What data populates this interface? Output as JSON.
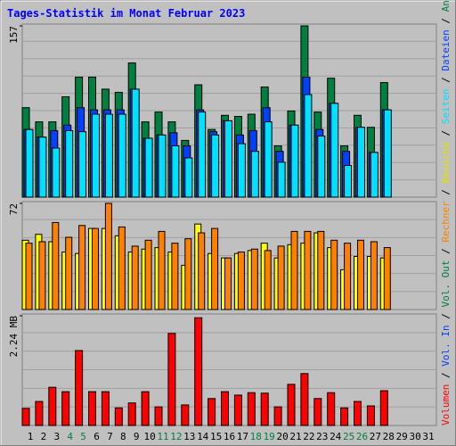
{
  "title": "Tages-Statistik im Monat Februar 2023",
  "x_axis": {
    "categories": [
      "1",
      "2",
      "3",
      "4",
      "5",
      "6",
      "7",
      "8",
      "9",
      "10",
      "11",
      "12",
      "13",
      "14",
      "15",
      "16",
      "17",
      "18",
      "19",
      "20",
      "21",
      "22",
      "23",
      "24",
      "25",
      "26",
      "27",
      "28",
      "29",
      "30",
      "31"
    ],
    "weekend": [
      3,
      4,
      10,
      11,
      17,
      18,
      24,
      25
    ],
    "color": "#000000",
    "weekend_color": "#008040"
  },
  "legend_separator": " / ",
  "chart_data": [
    {
      "type": "bar",
      "ylim": [
        0,
        157
      ],
      "yticks": [
        157
      ],
      "series": [
        {
          "name": "Anfragen",
          "color": "#008040",
          "values": [
            82,
            69,
            69,
            92,
            110,
            110,
            99,
            96,
            123,
            69,
            78,
            69,
            52,
            103,
            62,
            75,
            74,
            76,
            101,
            47,
            79,
            157,
            78,
            109,
            47,
            75,
            64,
            105,
            null,
            null,
            null
          ]
        },
        {
          "name": "Dateien",
          "color": "#0040ff",
          "values": [
            62,
            55,
            61,
            66,
            82,
            80,
            80,
            80,
            99,
            54,
            57,
            59,
            47,
            80,
            60,
            70,
            57,
            61,
            82,
            42,
            66,
            110,
            62,
            86,
            42,
            64,
            41,
            80,
            null,
            null,
            null
          ]
        },
        {
          "name": "Seiten",
          "color": "#00e0ff",
          "values": [
            62,
            55,
            45,
            61,
            60,
            76,
            76,
            76,
            99,
            54,
            57,
            47,
            36,
            78,
            57,
            70,
            49,
            42,
            69,
            32,
            66,
            94,
            56,
            86,
            29,
            64,
            41,
            80,
            null,
            null,
            null
          ]
        }
      ]
    },
    {
      "type": "bar",
      "ylim": [
        0,
        72
      ],
      "yticks": [
        72
      ],
      "series": [
        {
          "name": "Besuche",
          "color": "#ffff00",
          "values": [
            47,
            51,
            46,
            39,
            38,
            55,
            55,
            50,
            39,
            41,
            42,
            39,
            30,
            58,
            38,
            35,
            38,
            40,
            45,
            35,
            44,
            45,
            52,
            42,
            27,
            36,
            36,
            35,
            null,
            null,
            null
          ]
        },
        {
          "name": "Rechner",
          "color": "#ff8000",
          "values": [
            45,
            46,
            59,
            49,
            57,
            55,
            72,
            56,
            43,
            47,
            53,
            45,
            48,
            52,
            55,
            35,
            39,
            41,
            40,
            43,
            53,
            53,
            53,
            47,
            45,
            47,
            46,
            42,
            null,
            null,
            null
          ]
        }
      ]
    },
    {
      "type": "bar",
      "ylim": [
        0,
        2.24
      ],
      "yticks": [
        {
          "value": 2.24,
          "label": "2.24 MB"
        }
      ],
      "series": [
        {
          "name": "Volumen",
          "color": "#ff0000",
          "values": [
            0.35,
            0.49,
            0.78,
            0.69,
            1.53,
            0.69,
            0.69,
            0.36,
            0.46,
            0.69,
            0.38,
            1.88,
            0.42,
            2.2,
            0.55,
            0.69,
            0.62,
            0.67,
            0.66,
            0.38,
            0.84,
            1.06,
            0.55,
            0.67,
            0.36,
            0.49,
            0.4,
            0.71,
            null,
            null,
            null
          ]
        }
      ],
      "legend_extra": [
        {
          "name": "Vol. In",
          "color": "#0040ff"
        },
        {
          "name": "Vol. Out",
          "color": "#008040"
        }
      ]
    }
  ]
}
